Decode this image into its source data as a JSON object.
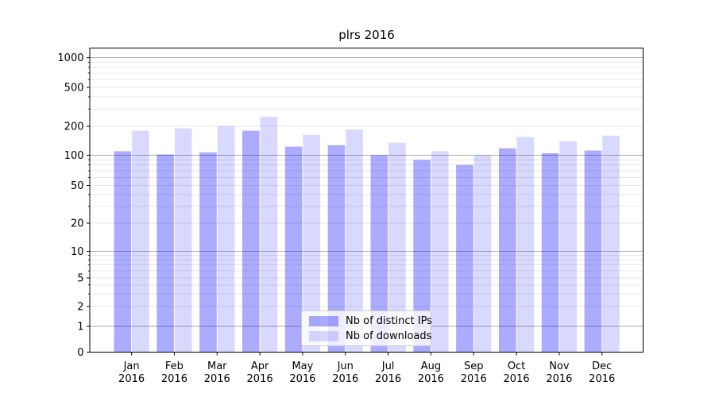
{
  "figure": {
    "background": "#ffffff"
  },
  "chart_data": {
    "type": "bar",
    "title": "plrs 2016",
    "xlabel": "",
    "ylabel": "",
    "yscale": "symlog",
    "ylim": [
      0,
      1400
    ],
    "yticks": [
      0,
      1,
      2,
      5,
      10,
      20,
      50,
      100,
      200,
      500,
      1000
    ],
    "grid": true,
    "categories": [
      "Jan 2016",
      "Feb 2016",
      "Mar 2016",
      "Apr 2016",
      "May 2016",
      "Jun 2016",
      "Jul 2016",
      "Aug 2016",
      "Sep 2016",
      "Oct 2016",
      "Nov 2016",
      "Dec 2016"
    ],
    "series": [
      {
        "name": "Nb of distinct IPs",
        "color": "rgba(0,0,255,0.33)",
        "values": [
          110,
          102,
          107,
          180,
          123,
          127,
          100,
          90,
          80,
          118,
          105,
          112
        ]
      },
      {
        "name": "Nb of downloads",
        "color": "rgba(0,0,255,0.15)",
        "values": [
          180,
          190,
          200,
          250,
          163,
          185,
          135,
          110,
          100,
          155,
          140,
          160
        ]
      }
    ],
    "legend": {
      "position": "lower center",
      "entries": [
        "Nb of distinct IPs",
        "Nb of downloads"
      ]
    },
    "colors": {
      "major_grid": "#ababab",
      "minor_grid": "#e7e7e7",
      "spine": "#000000",
      "text": "#000000"
    }
  }
}
